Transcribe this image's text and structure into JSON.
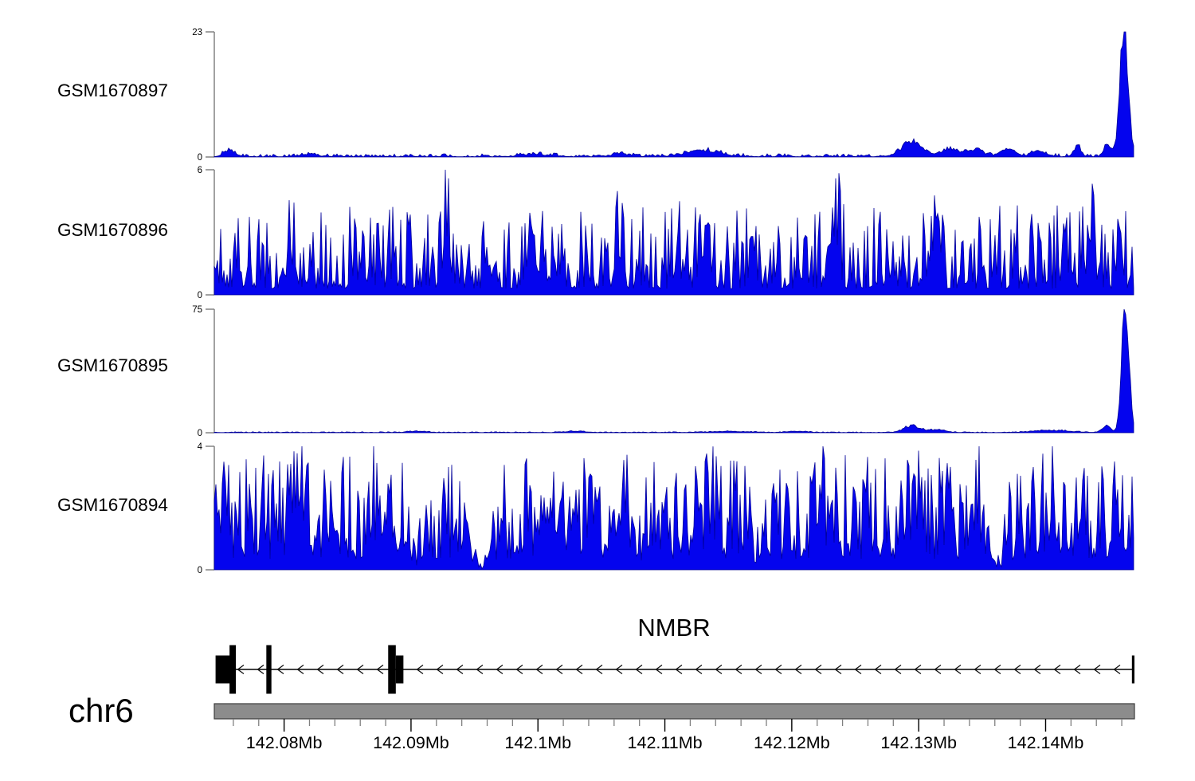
{
  "figure": {
    "background": "#ffffff"
  },
  "colors": {
    "signal_fill": "#0404ee",
    "signal_edge": "#000099",
    "axis_gray": "#7a7a7a",
    "bar_fill": "#8c8c8c",
    "bar_edge": "#3c3c3c",
    "tick_minor": "#808080",
    "tick_major": "#000000",
    "text": "#000000"
  },
  "chart_data": {
    "type": "area",
    "description": "Genome browser coverage tracks (read pileup) for four GEO samples over the NMBR locus",
    "x_axis": {
      "chromosome": "chr6",
      "unit": "Mb",
      "range": [
        142.0745,
        142.147
      ],
      "minor_tick_step": 0.002,
      "major_ticks": [
        {
          "value": 142.08,
          "label": "142.08Mb"
        },
        {
          "value": 142.09,
          "label": "142.09Mb"
        },
        {
          "value": 142.1,
          "label": "142.1Mb"
        },
        {
          "value": 142.11,
          "label": "142.11Mb"
        },
        {
          "value": 142.12,
          "label": "142.12Mb"
        },
        {
          "value": 142.13,
          "label": "142.13Mb"
        },
        {
          "value": 142.14,
          "label": "142.14Mb"
        }
      ]
    },
    "tracks": [
      {
        "id": "GSM1670897",
        "ylim": [
          0,
          23
        ],
        "seed": 7,
        "noise": {
          "base": 0.05,
          "amp": 0.55,
          "pow": 2.2
        },
        "peaks": [
          [
            142.0757,
            1.2,
            0.0006
          ],
          [
            142.082,
            0.5,
            0.0008
          ],
          [
            142.1,
            0.4,
            0.0015
          ],
          [
            142.1065,
            0.5,
            0.001
          ],
          [
            142.113,
            1.2,
            0.0018
          ],
          [
            142.1295,
            2.8,
            0.0012
          ],
          [
            142.1325,
            1.6,
            0.001
          ],
          [
            142.1345,
            1.5,
            0.0008
          ],
          [
            142.137,
            1.5,
            0.0008
          ],
          [
            142.1395,
            1.1,
            0.0008
          ],
          [
            142.1425,
            2.2,
            0.0004
          ],
          [
            142.1449,
            2.3,
            0.0004
          ],
          [
            142.1462,
            26,
            0.00045
          ]
        ],
        "dips": []
      },
      {
        "id": "GSM1670896",
        "ylim": [
          0,
          6
        ],
        "seed": 11,
        "noise": {
          "base": 0.3,
          "amp": 4.0,
          "pow": 2.0
        },
        "peaks": [
          [
            142.0805,
            1.6,
            0.0004
          ],
          [
            142.0928,
            3.2,
            0.00035
          ],
          [
            142.0995,
            2.2,
            0.0005
          ],
          [
            142.1065,
            1.6,
            0.0003
          ],
          [
            142.111,
            1.6,
            0.0003
          ],
          [
            142.117,
            1.5,
            0.0003
          ],
          [
            142.1235,
            2.6,
            0.00035
          ],
          [
            142.131,
            1.5,
            0.0004
          ],
          [
            142.1435,
            1.8,
            0.0004
          ]
        ],
        "dips": []
      },
      {
        "id": "GSM1670895",
        "ylim": [
          0,
          75
        ],
        "seed": 13,
        "noise": {
          "base": 0.1,
          "amp": 0.5,
          "pow": 2.0
        },
        "peaks": [
          [
            142.0905,
            0.8,
            0.001
          ],
          [
            142.103,
            0.8,
            0.001
          ],
          [
            142.115,
            0.7,
            0.002
          ],
          [
            142.1205,
            0.8,
            0.001
          ],
          [
            142.1295,
            4.5,
            0.0009
          ],
          [
            142.1315,
            1.8,
            0.0009
          ],
          [
            142.1405,
            1.3,
            0.002
          ],
          [
            142.1448,
            4,
            0.0005
          ],
          [
            142.1463,
            85,
            0.0004
          ]
        ],
        "dips": []
      },
      {
        "id": "GSM1670894",
        "ylim": [
          0,
          4
        ],
        "seed": 17,
        "noise": {
          "base": 0.35,
          "amp": 3.4,
          "pow": 1.5
        },
        "peaks": [
          [
            142.0815,
            1.0,
            0.0006
          ],
          [
            142.0875,
            0.9,
            0.0008
          ],
          [
            142.1065,
            0.9,
            0.0006
          ],
          [
            142.1135,
            0.9,
            0.0005
          ],
          [
            142.1222,
            1.0,
            0.0005
          ],
          [
            142.1298,
            0.9,
            0.0005
          ],
          [
            142.1344,
            1.2,
            0.0005
          ],
          [
            142.1405,
            0.8,
            0.0005
          ],
          [
            142.1455,
            0.9,
            0.0004
          ]
        ],
        "dips": [
          [
            142.0955,
            0.0012,
            0.92
          ],
          [
            142.0905,
            0.0005,
            0.6
          ],
          [
            142.1361,
            0.0009,
            0.9
          ],
          [
            142.0825,
            0.0004,
            0.5
          ],
          [
            142.1175,
            0.0005,
            0.55
          ],
          [
            142.1079,
            0.0004,
            0.5
          ]
        ]
      }
    ],
    "gene_track": {
      "title": "NMBR",
      "gene": "NMBR",
      "strand": "-",
      "line_range": [
        142.0748,
        142.1469
      ],
      "exons": [
        {
          "start": 142.0746,
          "end": 142.0758,
          "height": "medium"
        },
        {
          "start": 142.0757,
          "end": 142.0762,
          "height": "tall"
        },
        {
          "start": 142.0786,
          "end": 142.079,
          "height": "tall"
        },
        {
          "start": 142.0882,
          "end": 142.0888,
          "height": "tall"
        },
        {
          "start": 142.0888,
          "end": 142.0894,
          "height": "medium"
        },
        {
          "start": 142.1468,
          "end": 142.147,
          "height": "medium"
        }
      ]
    },
    "chromosome_bar": {
      "range": [
        142.0745,
        142.147
      ]
    }
  }
}
